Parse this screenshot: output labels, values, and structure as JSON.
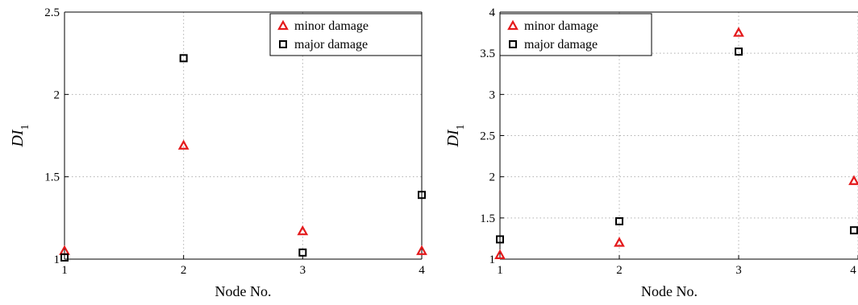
{
  "chart_data": [
    {
      "type": "scatter",
      "xlabel": "Node No.",
      "ylabel": "DI",
      "ylabel_subscript": "1",
      "xlim": [
        1,
        4
      ],
      "ylim": [
        1,
        2.5
      ],
      "xticks": [
        "1",
        "2",
        "3",
        "4"
      ],
      "yticks": [
        "1",
        "1.5",
        "2",
        "2.5"
      ],
      "grid": true,
      "legend_position": "top-right",
      "series": [
        {
          "name": "minor damage",
          "marker": "triangle",
          "color": "#e41a1c",
          "x": [
            1,
            2,
            3,
            4
          ],
          "y": [
            1.05,
            1.69,
            1.17,
            1.05
          ]
        },
        {
          "name": "major damage",
          "marker": "square",
          "color": "#000000",
          "x": [
            1,
            2,
            3,
            4
          ],
          "y": [
            1.01,
            2.22,
            1.04,
            1.39
          ]
        }
      ]
    },
    {
      "type": "scatter",
      "xlabel": "Node No.",
      "ylabel": "DI",
      "ylabel_subscript": "1",
      "xlim": [
        1,
        4
      ],
      "ylim": [
        1,
        4
      ],
      "xticks": [
        "1",
        "2",
        "3",
        "4"
      ],
      "yticks": [
        "1",
        "1.5",
        "2",
        "2.5",
        "3",
        "3.5",
        "4"
      ],
      "grid": true,
      "legend_position": "top-left",
      "series": [
        {
          "name": "minor damage",
          "marker": "triangle",
          "color": "#e41a1c",
          "x": [
            1,
            2,
            3,
            4
          ],
          "y": [
            1.05,
            1.2,
            3.75,
            1.95
          ]
        },
        {
          "name": "major damage",
          "marker": "square",
          "color": "#000000",
          "x": [
            1,
            2,
            3,
            4
          ],
          "y": [
            1.24,
            1.46,
            3.52,
            1.35
          ]
        }
      ]
    }
  ]
}
